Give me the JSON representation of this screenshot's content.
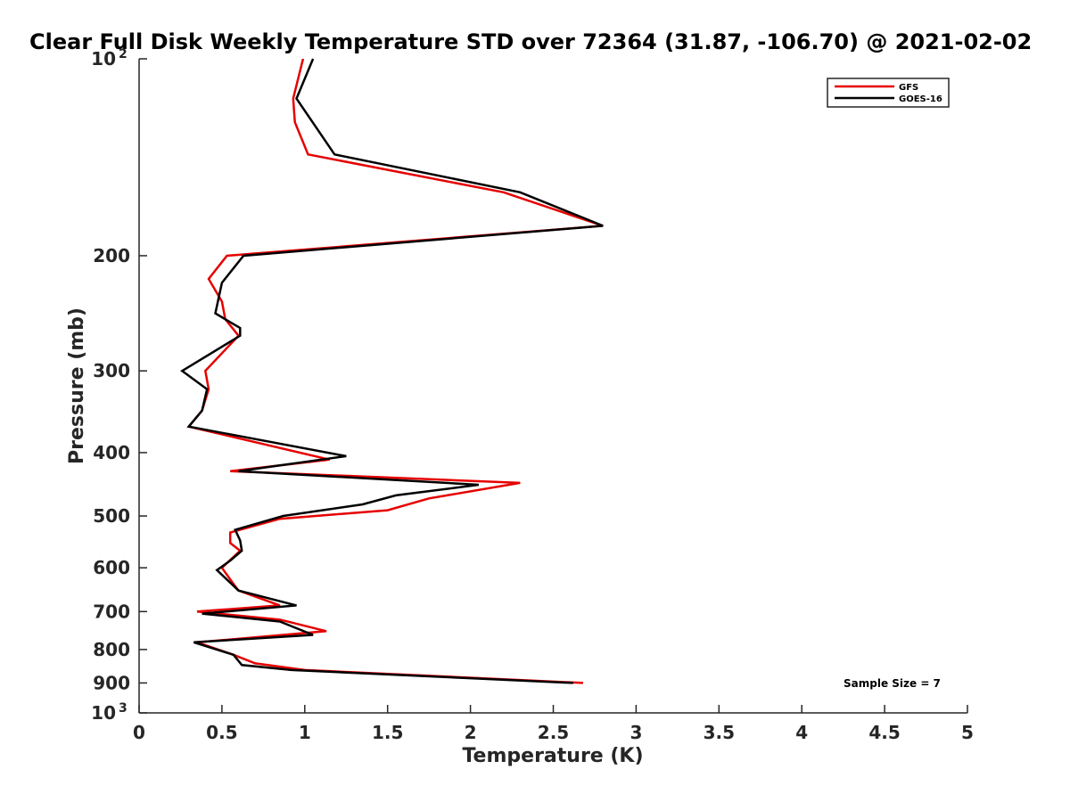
{
  "chart_data": {
    "type": "line",
    "title": "Clear Full Disk Weekly Temperature STD over 72364 (31.87, -106.70) @ 2021-02-02",
    "xlabel": "Temperature (K)",
    "ylabel": "Pressure (mb)",
    "xlim": [
      0,
      5
    ],
    "ylim": [
      100,
      1000
    ],
    "yscale": "log",
    "y_reversed": true,
    "grid": false,
    "legend_position": "top-right",
    "x_ticks": [
      {
        "value": 0,
        "label": "0"
      },
      {
        "value": 0.5,
        "label": "0.5"
      },
      {
        "value": 1,
        "label": "1"
      },
      {
        "value": 1.5,
        "label": "1.5"
      },
      {
        "value": 2,
        "label": "2"
      },
      {
        "value": 2.5,
        "label": "2.5"
      },
      {
        "value": 3,
        "label": "3"
      },
      {
        "value": 3.5,
        "label": "3.5"
      },
      {
        "value": 4,
        "label": "4"
      },
      {
        "value": 4.5,
        "label": "4.5"
      },
      {
        "value": 5,
        "label": "5"
      }
    ],
    "y_ticks": [
      {
        "value": 100,
        "label": "10",
        "sup": "2"
      },
      {
        "value": 200,
        "label": "200"
      },
      {
        "value": 300,
        "label": "300"
      },
      {
        "value": 400,
        "label": "400"
      },
      {
        "value": 500,
        "label": "500"
      },
      {
        "value": 600,
        "label": "600"
      },
      {
        "value": 700,
        "label": "700"
      },
      {
        "value": 800,
        "label": "800"
      },
      {
        "value": 900,
        "label": "900"
      },
      {
        "value": 1000,
        "label": "10",
        "sup": "3"
      }
    ],
    "annotation": "Sample Size = 7",
    "series": [
      {
        "name": "GFS",
        "color": "#e60000",
        "points": [
          [
            0.99,
            100
          ],
          [
            0.93,
            115
          ],
          [
            0.94,
            125
          ],
          [
            1.02,
            140
          ],
          [
            2.2,
            160
          ],
          [
            2.8,
            180
          ],
          [
            0.53,
            200
          ],
          [
            0.42,
            217
          ],
          [
            0.5,
            235
          ],
          [
            0.52,
            250
          ],
          [
            0.6,
            265
          ],
          [
            0.4,
            300
          ],
          [
            0.42,
            320
          ],
          [
            0.38,
            345
          ],
          [
            0.3,
            365
          ],
          [
            1.15,
            410
          ],
          [
            0.55,
            427
          ],
          [
            2.3,
            445
          ],
          [
            1.75,
            470
          ],
          [
            1.5,
            490
          ],
          [
            0.85,
            505
          ],
          [
            0.55,
            530
          ],
          [
            0.55,
            550
          ],
          [
            0.61,
            565
          ],
          [
            0.5,
            600
          ],
          [
            0.56,
            630
          ],
          [
            0.6,
            650
          ],
          [
            0.85,
            685
          ],
          [
            0.35,
            700
          ],
          [
            0.85,
            720
          ],
          [
            1.13,
            750
          ],
          [
            0.35,
            780
          ],
          [
            0.57,
            815
          ],
          [
            0.7,
            840
          ],
          [
            1.0,
            860
          ],
          [
            2.68,
            900
          ]
        ]
      },
      {
        "name": "GOES-16",
        "color": "#000000",
        "points": [
          [
            1.05,
            100
          ],
          [
            0.95,
            115
          ],
          [
            1.18,
            140
          ],
          [
            2.3,
            160
          ],
          [
            2.8,
            180
          ],
          [
            0.63,
            200
          ],
          [
            0.5,
            220
          ],
          [
            0.46,
            245
          ],
          [
            0.61,
            258
          ],
          [
            0.61,
            265
          ],
          [
            0.26,
            300
          ],
          [
            0.41,
            320
          ],
          [
            0.38,
            345
          ],
          [
            0.3,
            365
          ],
          [
            1.25,
            405
          ],
          [
            0.6,
            427
          ],
          [
            2.05,
            448
          ],
          [
            1.55,
            465
          ],
          [
            1.35,
            480
          ],
          [
            0.87,
            500
          ],
          [
            0.58,
            525
          ],
          [
            0.61,
            545
          ],
          [
            0.62,
            565
          ],
          [
            0.55,
            585
          ],
          [
            0.47,
            605
          ],
          [
            0.6,
            650
          ],
          [
            0.95,
            685
          ],
          [
            0.38,
            705
          ],
          [
            0.85,
            725
          ],
          [
            1.05,
            760
          ],
          [
            0.33,
            780
          ],
          [
            0.57,
            815
          ],
          [
            0.62,
            845
          ],
          [
            0.92,
            860
          ],
          [
            2.62,
            900
          ]
        ]
      }
    ]
  }
}
